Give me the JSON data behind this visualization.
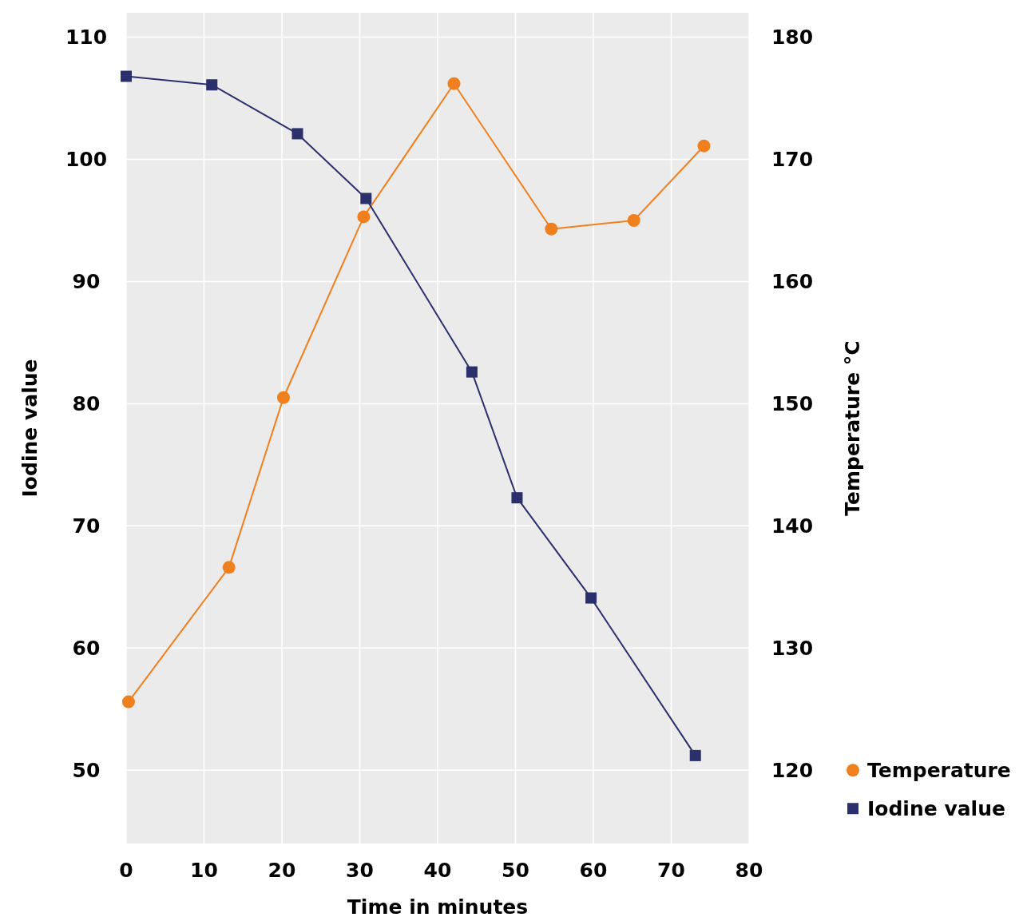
{
  "chart_data": {
    "type": "line",
    "xlabel": "Time in minutes",
    "ylabel": "Iodine value",
    "y2label": "Temperature °C",
    "xlim": [
      0,
      80
    ],
    "xticks": [
      0,
      10,
      20,
      30,
      40,
      50,
      60,
      70,
      80
    ],
    "ylim": [
      44,
      112
    ],
    "yticks": [
      50,
      60,
      70,
      80,
      90,
      100,
      110
    ],
    "y2lim": [
      114,
      182
    ],
    "y2ticks": [
      120,
      130,
      140,
      150,
      160,
      170,
      180
    ],
    "grid": true,
    "legend": "bottom right",
    "series": [
      {
        "name": "Temperature",
        "color": "#f07f1e",
        "axis": "y2",
        "marker": "circle",
        "x": [
          0.3,
          13.2,
          20.2,
          30.5,
          42.1,
          54.6,
          65.2,
          74.2
        ],
        "values": [
          125.6,
          136.6,
          150.5,
          165.3,
          176.2,
          164.3,
          165.0,
          171.1
        ]
      },
      {
        "name": "Iodine value",
        "color": "#2b2f6b",
        "marker": "square",
        "x": [
          0,
          11.0,
          22.0,
          30.8,
          44.4,
          50.2,
          59.7,
          73.1
        ],
        "values": [
          106.8,
          106.1,
          102.1,
          96.8,
          82.6,
          72.3,
          64.1,
          51.2
        ]
      }
    ]
  }
}
